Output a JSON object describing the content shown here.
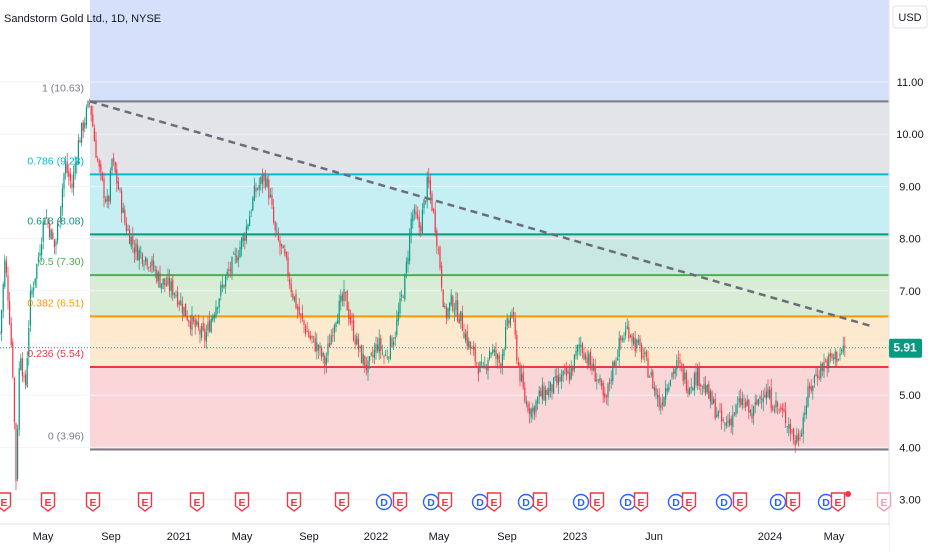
{
  "header": {
    "title": "Sandstorm Gold Ltd., 1D, NYSE",
    "currency": "USD"
  },
  "price_badge": "5.91",
  "colors": {
    "level_1": "#787b86",
    "level_0786": "#00bcd4",
    "level_0618": "#089981",
    "level_05": "#4caf50",
    "level_0382": "#ff9800",
    "level_0236": "#f23645",
    "level_0": "#787b86",
    "badge": "#089981",
    "up": "#089981",
    "down": "#f23645",
    "event_earnings": "#f23645",
    "event_dividend": "#2962ff",
    "event_earnings_future": "#f0a0aa",
    "trendline": "#6a6d78"
  },
  "chart_data": {
    "type": "candlestick",
    "title": "Sandstorm Gold Ltd., 1D, NYSE",
    "ylim": [
      2.9,
      12.3
    ],
    "y_ticks": [
      "11.00",
      "10.00",
      "9.00",
      "8.00",
      "7.00",
      "6.00",
      "5.00",
      "4.00",
      "3.00"
    ],
    "x_ticks": [
      "May",
      "Sep",
      "2021",
      "May",
      "Sep",
      "2022",
      "May",
      "Sep",
      "2023",
      "Jun",
      "2024",
      "May"
    ],
    "fib_levels": [
      {
        "label": "1 (10.63)",
        "value": 10.63,
        "fill": "#e3e4e8"
      },
      {
        "label": "0.786 (9.23)",
        "value": 9.23,
        "fill": "#c6eff3"
      },
      {
        "label": "0.618 (8.08)",
        "value": 8.08,
        "fill": "#c8e8e1"
      },
      {
        "label": "0.5 (7.30)",
        "value": 7.3,
        "fill": "#d9ecd6"
      },
      {
        "label": "0.382 (6.51)",
        "value": 6.51,
        "fill": "#fde9ce"
      },
      {
        "label": "0.236 (5.54)",
        "value": 5.54,
        "fill": "#fbd6d9"
      },
      {
        "label": "0 (3.96)",
        "value": 3.96,
        "fill": ""
      }
    ],
    "top_zone_fill": "#d5e0fb",
    "trendline": {
      "from": [
        "Jul 2020",
        10.63
      ],
      "to": [
        "Jun 2024",
        6.4
      ]
    },
    "last_price": 5.91,
    "price_waypoints": [
      [
        0,
        6.2
      ],
      [
        5,
        7.6
      ],
      [
        9,
        6.7
      ],
      [
        13,
        5.4
      ],
      [
        16,
        3.4
      ],
      [
        20,
        6.0
      ],
      [
        25,
        5.0
      ],
      [
        30,
        6.8
      ],
      [
        38,
        7.6
      ],
      [
        45,
        8.5
      ],
      [
        55,
        7.8
      ],
      [
        65,
        9.4
      ],
      [
        72,
        9.0
      ],
      [
        78,
        9.8
      ],
      [
        85,
        10.3
      ],
      [
        90,
        10.63
      ],
      [
        95,
        9.8
      ],
      [
        100,
        9.2
      ],
      [
        108,
        8.6
      ],
      [
        112,
        9.5
      ],
      [
        118,
        9.0
      ],
      [
        125,
        8.3
      ],
      [
        135,
        7.8
      ],
      [
        148,
        7.6
      ],
      [
        160,
        7.2
      ],
      [
        175,
        7.0
      ],
      [
        185,
        6.6
      ],
      [
        195,
        6.3
      ],
      [
        205,
        6.1
      ],
      [
        215,
        6.7
      ],
      [
        225,
        7.2
      ],
      [
        235,
        7.6
      ],
      [
        245,
        8.1
      ],
      [
        255,
        8.9
      ],
      [
        265,
        9.2
      ],
      [
        270,
        8.8
      ],
      [
        275,
        8.1
      ],
      [
        285,
        7.6
      ],
      [
        292,
        7.0
      ],
      [
        300,
        6.5
      ],
      [
        310,
        6.1
      ],
      [
        318,
        5.9
      ],
      [
        325,
        5.6
      ],
      [
        335,
        6.5
      ],
      [
        345,
        6.9
      ],
      [
        352,
        6.3
      ],
      [
        360,
        5.8
      ],
      [
        368,
        5.5
      ],
      [
        378,
        6.0
      ],
      [
        385,
        5.7
      ],
      [
        395,
        6.2
      ],
      [
        405,
        7.2
      ],
      [
        412,
        8.5
      ],
      [
        420,
        8.2
      ],
      [
        428,
        9.1
      ],
      [
        435,
        8.3
      ],
      [
        440,
        7.5
      ],
      [
        445,
        6.5
      ],
      [
        452,
        6.8
      ],
      [
        460,
        6.5
      ],
      [
        468,
        6.0
      ],
      [
        475,
        5.7
      ],
      [
        483,
        5.4
      ],
      [
        490,
        5.9
      ],
      [
        500,
        5.6
      ],
      [
        507,
        6.3
      ],
      [
        512,
        6.6
      ],
      [
        518,
        5.6
      ],
      [
        525,
        4.9
      ],
      [
        532,
        4.7
      ],
      [
        540,
        5.0
      ],
      [
        550,
        5.1
      ],
      [
        560,
        5.3
      ],
      [
        570,
        5.4
      ],
      [
        580,
        6.0
      ],
      [
        590,
        5.6
      ],
      [
        598,
        5.3
      ],
      [
        605,
        4.8
      ],
      [
        612,
        5.5
      ],
      [
        620,
        6.0
      ],
      [
        628,
        6.3
      ],
      [
        635,
        6.0
      ],
      [
        642,
        5.8
      ],
      [
        650,
        5.4
      ],
      [
        660,
        4.8
      ],
      [
        668,
        5.3
      ],
      [
        678,
        5.6
      ],
      [
        688,
        5.2
      ],
      [
        698,
        5.4
      ],
      [
        708,
        5.0
      ],
      [
        716,
        4.7
      ],
      [
        724,
        4.4
      ],
      [
        732,
        4.6
      ],
      [
        742,
        4.9
      ],
      [
        752,
        4.6
      ],
      [
        762,
        5.1
      ],
      [
        772,
        4.9
      ],
      [
        780,
        4.7
      ],
      [
        788,
        4.5
      ],
      [
        795,
        4.1
      ],
      [
        800,
        4.3
      ],
      [
        808,
        5.0
      ],
      [
        816,
        5.4
      ],
      [
        824,
        5.6
      ],
      [
        832,
        5.7
      ],
      [
        840,
        5.8
      ],
      [
        845,
        5.91
      ]
    ],
    "events": [
      {
        "type": "E",
        "x": 4
      },
      {
        "type": "E",
        "x": 48
      },
      {
        "type": "E",
        "x": 93
      },
      {
        "type": "E",
        "x": 145
      },
      {
        "type": "E",
        "x": 197
      },
      {
        "type": "E",
        "x": 242
      },
      {
        "type": "E",
        "x": 294
      },
      {
        "type": "E",
        "x": 342
      },
      {
        "type": "D",
        "x": 384
      },
      {
        "type": "E",
        "x": 400
      },
      {
        "type": "D",
        "x": 431
      },
      {
        "type": "E",
        "x": 445
      },
      {
        "type": "D",
        "x": 480
      },
      {
        "type": "E",
        "x": 494
      },
      {
        "type": "D",
        "x": 526
      },
      {
        "type": "E",
        "x": 540
      },
      {
        "type": "D",
        "x": 581
      },
      {
        "type": "E",
        "x": 597
      },
      {
        "type": "D",
        "x": 628
      },
      {
        "type": "E",
        "x": 641
      },
      {
        "type": "D",
        "x": 676
      },
      {
        "type": "E",
        "x": 689
      },
      {
        "type": "D",
        "x": 724
      },
      {
        "type": "E",
        "x": 740
      },
      {
        "type": "D",
        "x": 778
      },
      {
        "type": "E",
        "x": 793
      },
      {
        "type": "D",
        "x": 826
      },
      {
        "type": "E",
        "x": 838
      },
      {
        "type": "E_future",
        "x": 884
      }
    ]
  }
}
